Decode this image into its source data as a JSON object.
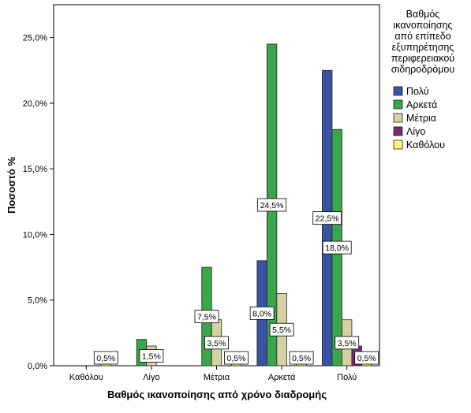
{
  "chart_data": {
    "type": "bar",
    "xlabel": "Βαθμός ικανοποίησης από χρόνο διαδρομής",
    "ylabel": "Ποσοστό %",
    "categories": [
      "Καθόλου",
      "Λίγο",
      "Μέτρια",
      "Αρκετά",
      "Πολύ"
    ],
    "ylim": [
      0,
      27.5
    ],
    "yticks": [
      0,
      5,
      10,
      15,
      20,
      25
    ],
    "ytick_labels": [
      "0,0%",
      "5,0%",
      "10,0%",
      "15,0%",
      "20,0%",
      "25,0%"
    ],
    "legend": {
      "title_lines": [
        "Βαθμός",
        "ικανοποίησης",
        "από επίπεδο",
        "εξυπηρέτησης",
        "περιφερειακού",
        "σιδηροδρόμου"
      ],
      "position": "right"
    },
    "series": [
      {
        "name": "Πολύ",
        "color": "#3953a4",
        "values": [
          0,
          0,
          0,
          8.0,
          22.5
        ],
        "labels": [
          "",
          "",
          "",
          "8,0%",
          "22,5%"
        ]
      },
      {
        "name": "Αρκετά",
        "color": "#3aa64a",
        "values": [
          0,
          2.0,
          7.5,
          24.5,
          18.0
        ],
        "labels": [
          "",
          "",
          "7,5%",
          "24,5%",
          "18,0%"
        ]
      },
      {
        "name": "Μέτρια",
        "color": "#d6d1a0",
        "values": [
          0,
          1.5,
          3.5,
          5.5,
          3.5
        ],
        "labels": [
          "",
          "1,5%",
          "3,5%",
          "5,5%",
          "3,5%"
        ]
      },
      {
        "name": "Λίγο",
        "color": "#7b2a7a",
        "values": [
          0,
          0,
          0,
          0,
          1.5
        ],
        "labels": [
          "",
          "",
          "",
          "",
          ""
        ]
      },
      {
        "name": "Καθόλου",
        "color": "#fdf67a",
        "values": [
          0.5,
          0,
          0.5,
          0.5,
          0.5
        ],
        "labels": [
          "0,5%",
          "",
          "0,5%",
          "0,5%",
          "0,5%"
        ]
      }
    ]
  }
}
